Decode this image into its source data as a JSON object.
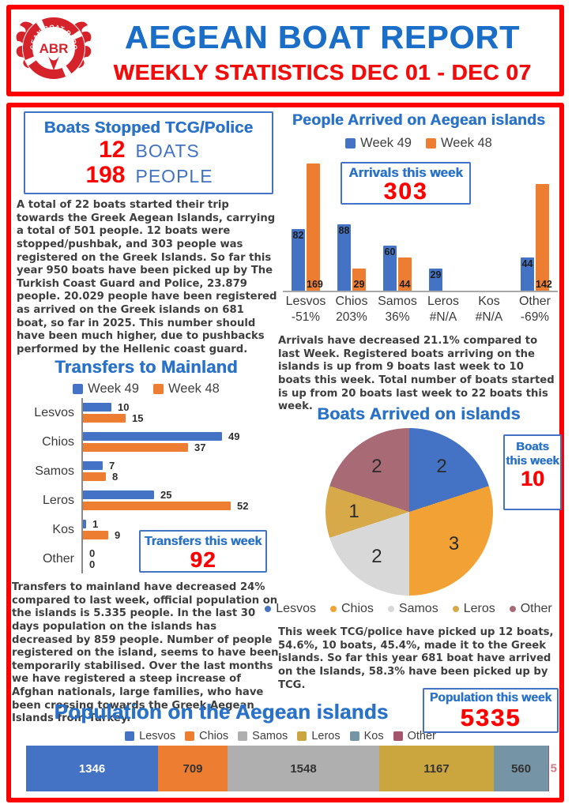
{
  "header": {
    "title": "AEGEAN BOAT REPORT",
    "subtitle": "WEEKLY STATISTICS DEC 01 - DEC 07",
    "logo": {
      "abbr": "ABR",
      "arc_text": "AEGEAN BOAT REPORT"
    }
  },
  "colors": {
    "red": "#FF0000",
    "title_blue": "#1B6EC8",
    "section_blue": "#2A72C8",
    "week49_blue": "#4472C4",
    "week48_orange": "#ED7D31",
    "body_text": "#3E3E3E",
    "logo_red": "#D6232B"
  },
  "boats_stopped": {
    "title": "Boats Stopped TCG/Police",
    "rows": [
      {
        "value": "12",
        "label": "BOATS"
      },
      {
        "value": "198",
        "label": "PEOPLE"
      }
    ]
  },
  "paragraphs": {
    "stopped": "A total of 22 boats started their trip towards the Greek Aegean Islands, carrying a total of 501 people. 12 boats were stopped/pushbak, and 303 people was registered on the Greek Islands. So far this year 950 boats have been picked up by The Turkish Coast Guard and Police, 23.879 people. 20.029 people have been registered as arrived on the Greek islands on 681 boat, so far in 2025. This number should have been much higher, due to pushbacks performed by the Hellenic coast guard.",
    "arrivals": "Arrivals have decreased 21.1% compared to last Week. Registered boats arriving on the islands is up from 9 boats last week to 10 boats this week. Total number of boats started is up from 20 boats last week to 22 boats this week.",
    "transfers": "Transfers to mainland have decreased 24% compared to last week, official population on the islands is 5.335 people. In the last 30 days population on the islands has decreased by 859 people. Number of people registered on the island, seems to have been temporarily stabilised. Over the last months we have registered a steep increase of Afghan nationals, large families, who have been crossing towards the Greek Aegean Islands from Turkey.",
    "boats_arrived": "This week TCG/police have picked up 12 boats, 54.6%, 10 boats, 45.4%, made it to the Greek islands. So far this year 681 boat have arrived on the Islands, 58.3% have been picked up by TCG."
  },
  "chart_data": [
    {
      "id": "arrivals",
      "type": "bar",
      "orientation": "vertical",
      "title": "People Arrived on Aegean islands",
      "categories": [
        "Lesvos",
        "Chios",
        "Samos",
        "Leros",
        "Kos",
        "Other"
      ],
      "change": [
        "-51%",
        "203%",
        "36%",
        "#N/A",
        "#N/A",
        "-69%"
      ],
      "series": [
        {
          "name": "Week 49",
          "color": "#4472C4",
          "values": [
            82,
            88,
            60,
            29,
            null,
            44
          ]
        },
        {
          "name": "Week 48",
          "color": "#ED7D31",
          "values": [
            169,
            29,
            44,
            null,
            null,
            142
          ]
        }
      ],
      "ylim": [
        0,
        175
      ],
      "grid": false,
      "legend_position": "top",
      "callout": {
        "label": "Arrivals this week",
        "value": "303"
      }
    },
    {
      "id": "transfers",
      "type": "bar",
      "orientation": "horizontal",
      "title": "Transfers to Mainland",
      "categories": [
        "Lesvos",
        "Chios",
        "Samos",
        "Leros",
        "Kos",
        "Other"
      ],
      "series": [
        {
          "name": "Week 49",
          "color": "#4472C4",
          "values": [
            10,
            49,
            7,
            25,
            1,
            0
          ]
        },
        {
          "name": "Week 48",
          "color": "#ED7D31",
          "values": [
            15,
            37,
            8,
            52,
            9,
            0
          ]
        }
      ],
      "xlim": [
        0,
        55
      ],
      "grid": false,
      "legend_position": "top",
      "callout": {
        "label": "Transfers this week",
        "value": "92"
      }
    },
    {
      "id": "boats_pie",
      "type": "pie",
      "title": "Boats Arrived on islands",
      "slices": [
        {
          "label": "Lesvos",
          "value": 2,
          "color": "#4472C4"
        },
        {
          "label": "Chios",
          "value": 3,
          "color": "#F2A135"
        },
        {
          "label": "Samos",
          "value": 2,
          "color": "#D8D8D8"
        },
        {
          "label": "Leros",
          "value": 1,
          "color": "#D8A948"
        },
        {
          "label": "Other",
          "value": 2,
          "color": "#A86B76"
        }
      ],
      "legend_position": "bottom",
      "callout": {
        "label": "Boats this week",
        "value": "10"
      }
    },
    {
      "id": "population",
      "type": "stacked-bar",
      "title": "Population on the Aegean islands",
      "total": 5335,
      "segments": [
        {
          "label": "Lesvos",
          "value": 1346,
          "color": "#4472C4",
          "text": "#FFFFFF"
        },
        {
          "label": "Chios",
          "value": 709,
          "color": "#ED7D31",
          "text": "#333333"
        },
        {
          "label": "Samos",
          "value": 1548,
          "color": "#AFAFAF",
          "text": "#333333"
        },
        {
          "label": "Leros",
          "value": 1167,
          "color": "#CBA63F",
          "text": "#333333"
        },
        {
          "label": "Kos",
          "value": 560,
          "color": "#7594A5",
          "text": "#333333"
        },
        {
          "label": "Other",
          "value": 5,
          "color": "#A3566B",
          "text": "#CE7C86",
          "outside": true
        }
      ],
      "legend_position": "top",
      "callout": {
        "label": "Population this week",
        "value": "5335"
      }
    }
  ]
}
